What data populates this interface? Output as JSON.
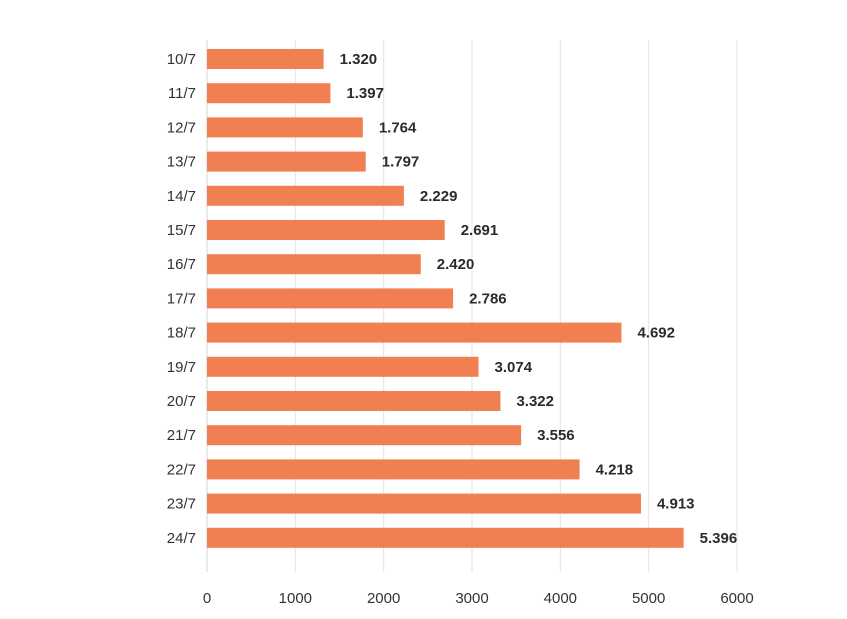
{
  "chart_data": {
    "type": "bar",
    "orientation": "horizontal",
    "title": "",
    "xlabel": "",
    "ylabel": "",
    "categories": [
      "10/7",
      "11/7",
      "12/7",
      "13/7",
      "14/7",
      "15/7",
      "16/7",
      "17/7",
      "18/7",
      "19/7",
      "20/7",
      "21/7",
      "22/7",
      "23/7",
      "24/7"
    ],
    "values": [
      1320,
      1397,
      1764,
      1797,
      2229,
      2691,
      2420,
      2786,
      4692,
      3074,
      3322,
      3556,
      4218,
      4913,
      5396
    ],
    "value_labels": [
      "1.320",
      "1.397",
      "1.764",
      "1.797",
      "2.229",
      "2.691",
      "2.420",
      "2.786",
      "4.692",
      "3.074",
      "3.322",
      "3.556",
      "4.218",
      "4.913",
      "5.396"
    ],
    "xlim": [
      0,
      6000
    ],
    "xticks": [
      0,
      1000,
      2000,
      3000,
      4000,
      5000,
      6000
    ],
    "xtick_labels": [
      "0",
      "1000",
      "2000",
      "3000",
      "4000",
      "5000",
      "6000"
    ],
    "grid": true,
    "legend": "none",
    "bar_color": "#f07f52"
  }
}
